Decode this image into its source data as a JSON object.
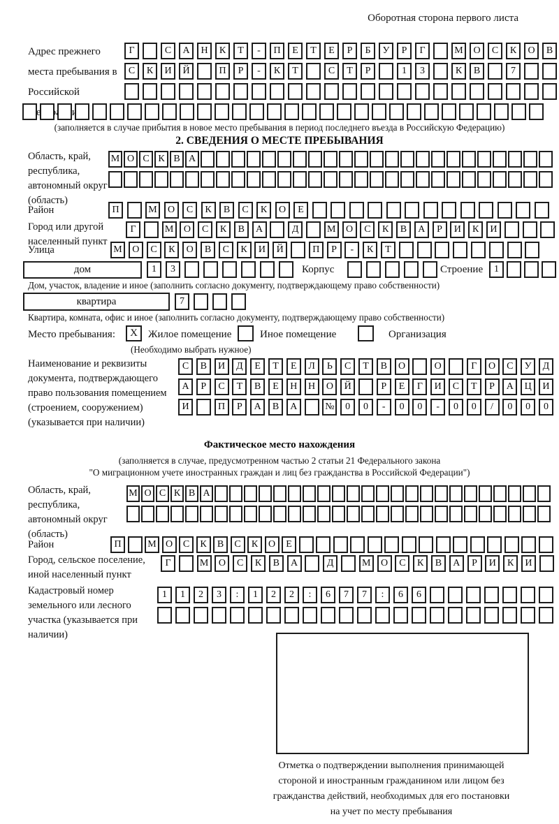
{
  "header_note": "Оборотная сторона первого листа",
  "prev_address": {
    "label": "Адрес прежнего места пребывания в Российской Федерации",
    "rows": [
      {
        "text": "Г САНКТ-ПЕТЕРБУРГ МОСКОВ",
        "len": 24
      },
      {
        "text": "СКИЙ ПР-КТ СТР 13 КВ 7",
        "len": 24
      },
      {
        "text": "",
        "len": 24
      },
      {
        "text": "",
        "len": 30
      }
    ],
    "note": "(заполняется в случае прибытия в новое место пребывания в период последнего въезда в Российскую Федерацию)"
  },
  "section2": {
    "title": "2. СВЕДЕНИЯ О МЕСТЕ ПРЕБЫВАНИЯ",
    "oblast": {
      "label": "Область, край, республика, автономный округ (область)",
      "rows": [
        {
          "text": "МОСКВА",
          "len": 29
        },
        {
          "text": "",
          "len": 29
        }
      ]
    },
    "rayon": {
      "label": "Район",
      "row": {
        "text": "П МОСКВСКОЕ",
        "len": 24
      }
    },
    "gorod": {
      "label": "Город или другой населенный пункт",
      "row": {
        "text": "Г МОСКВА Д МОСКВАРИКИ",
        "len": 24
      }
    },
    "ulitsa": {
      "label": "Улица",
      "row": {
        "text": "МОСКОВСКИЙ ПР-КТ",
        "len": 24
      }
    },
    "dom": {
      "box_label": "дом",
      "number_row": {
        "text": "13",
        "len": 8
      },
      "korpus_label": "Корпус",
      "korpus_row": {
        "text": "",
        "len": 5
      },
      "stroenie_label": "Строение",
      "stroenie_row": {
        "text": "1",
        "len": 4
      },
      "note": "Дом, участок, владение и иное (заполнить согласно документу, подтверждающему право собственности)"
    },
    "kvartira": {
      "box_label": "квартира",
      "number_row": {
        "text": "7",
        "len": 4
      },
      "note": "Квартира, комната, офис и иное (заполнить согласно документу, подтверждающему право собственности)"
    },
    "stay": {
      "label": "Место пребывания:",
      "options": [
        {
          "label": "Жилое помещение",
          "mark": "X"
        },
        {
          "label": "Иное помещение",
          "mark": ""
        },
        {
          "label": "Организация",
          "mark": ""
        }
      ],
      "note": "(Необходимо выбрать нужное)"
    },
    "doc": {
      "label": "Наименование и реквизиты документа, подтверждающего право пользования помещением (строением, сооружением) (указывается при наличии)",
      "rows": [
        {
          "text": "СВИДЕТЕЛЬСТВО О ГОСУД",
          "len": 21
        },
        {
          "text": "АРСТВЕННОЙ РЕГИСТРАЦИ",
          "len": 21
        },
        {
          "text": "И ПРАВА №00-00-00/000",
          "len": 21
        }
      ]
    }
  },
  "factual": {
    "title": "Фактическое место нахождения",
    "note_line1": "(заполняется в случае, предусмотренном частью 2 статьи 21 Федерального закона",
    "note_line2": "\"О миграционном учете иностранных граждан и лиц без гражданства в Российской Федерации\")",
    "oblast": {
      "label": "Область, край, республика, автономный округ (область)",
      "rows": [
        {
          "text": "МОСКВА",
          "len": 29
        },
        {
          "text": "",
          "len": 29
        }
      ]
    },
    "rayon": {
      "label": "Район",
      "row": {
        "text": "П МОСКВСКОЕ",
        "len": 26
      }
    },
    "gorod": {
      "label": "Город, сельское поселение, иной населенный пункт",
      "row": {
        "text": "Г МОСКВА Д МОСКВАРИКИ",
        "len": 22
      }
    },
    "kadastr": {
      "label": "Кадастровый номер земельного или лесного участка (указывается при наличии)",
      "rows": [
        {
          "text": "1123:122:677:66",
          "len": 22
        },
        {
          "text": "",
          "len": 22
        }
      ]
    }
  },
  "stamp": {
    "lines": [
      "Отметка о подтверждении выполнения принимающей",
      "стороной и иностранным гражданином или лицом без",
      "гражданства действий, необходимых для его постановки",
      "на учет по месту пребывания"
    ]
  }
}
